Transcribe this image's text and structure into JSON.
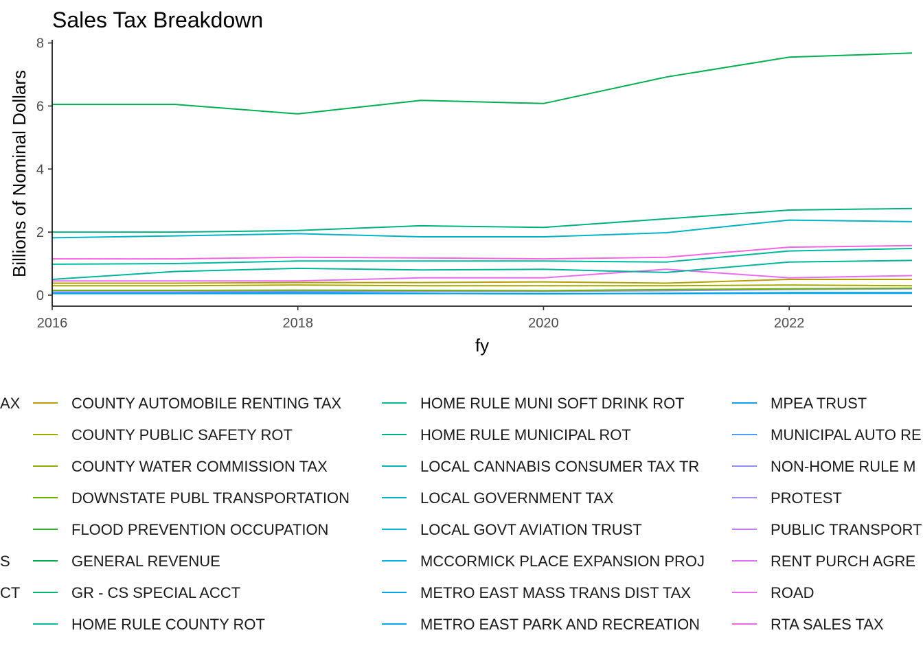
{
  "chart_data": {
    "type": "line",
    "title": "Sales Tax Breakdown",
    "xlabel": "fy",
    "ylabel": "Billions of Nominal Dollars",
    "xlim": [
      2016,
      2023
    ],
    "ylim": [
      -0.35,
      8.1
    ],
    "x_ticks": [
      "2016",
      "2018",
      "2020",
      "2022"
    ],
    "y_ticks": [
      "0",
      "2",
      "4",
      "6",
      "8"
    ],
    "x": [
      2016,
      2017,
      2018,
      2019,
      2020,
      2021,
      2022,
      2023
    ],
    "legend_position": "bottom",
    "series": [
      {
        "name": "GENERAL REVENUE",
        "color": "#00b050",
        "values": [
          6.05,
          6.05,
          5.75,
          6.18,
          6.08,
          6.92,
          7.55,
          7.68
        ]
      },
      {
        "name": "HOME RULE MUNICIPAL ROT",
        "color": "#00b080",
        "values": [
          2.0,
          2.0,
          2.05,
          2.2,
          2.15,
          2.42,
          2.7,
          2.75
        ]
      },
      {
        "name": "LOCAL GOVERNMENT TAX",
        "color": "#00b4c4",
        "values": [
          1.82,
          1.88,
          1.95,
          1.85,
          1.85,
          1.98,
          2.38,
          2.33
        ]
      },
      {
        "name": "RTA SALES TAX",
        "color": "#f465e3",
        "values": [
          1.15,
          1.15,
          1.2,
          1.18,
          1.15,
          1.2,
          1.52,
          1.57
        ]
      },
      {
        "name": "HOME RULE COUNTY ROT",
        "color": "#00b9a0",
        "values": [
          0.98,
          1.0,
          1.08,
          1.08,
          1.08,
          1.05,
          1.4,
          1.48
        ]
      },
      {
        "name": "HOME RULE MUNI SOFT DRINK ROT",
        "color": "#00b59a",
        "values": [
          0.5,
          0.75,
          0.85,
          0.8,
          0.82,
          0.72,
          1.05,
          1.1
        ]
      },
      {
        "name": "ROAD",
        "color": "#ea6bf0",
        "values": [
          0.45,
          0.45,
          0.45,
          0.55,
          0.55,
          0.82,
          0.55,
          0.62
        ]
      },
      {
        "name": "COUNTY AUTOMOBILE RENTING TAX",
        "color": "#b5a000",
        "values": [
          0.38,
          0.38,
          0.4,
          0.4,
          0.42,
          0.38,
          0.5,
          0.5
        ]
      },
      {
        "name": "COUNTY PUBLIC SAFETY ROT",
        "color": "#a3a500",
        "values": [
          0.3,
          0.3,
          0.32,
          0.3,
          0.3,
          0.3,
          0.32,
          0.3
        ]
      },
      {
        "name": "DOWNSTATE PUBL TRANSPORTATION",
        "color": "#6bb100",
        "values": [
          0.15,
          0.15,
          0.16,
          0.15,
          0.14,
          0.18,
          0.2,
          0.22
        ]
      },
      {
        "name": "NON-HOME RULE MUNI",
        "color": "#8f90ff",
        "values": [
          0.1,
          0.1,
          0.12,
          0.12,
          0.12,
          0.14,
          0.18,
          0.2
        ]
      },
      {
        "name": "METRO EAST MASS TRANS DIST TAX",
        "color": "#00a6e6",
        "values": [
          0.05,
          0.05,
          0.05,
          0.05,
          0.05,
          0.05,
          0.06,
          0.06
        ]
      },
      {
        "name": "MPEA TRUST",
        "color": "#129ef7",
        "values": [
          0.08,
          0.08,
          0.08,
          0.06,
          0.04,
          0.06,
          0.08,
          0.08
        ]
      }
    ]
  },
  "legend": {
    "col0": [
      "AX",
      "",
      "",
      "",
      "",
      "S",
      "CT"
    ],
    "col1": [
      {
        "label": "COUNTY AUTOMOBILE RENTING TAX",
        "color": "#b5a000"
      },
      {
        "label": "COUNTY PUBLIC SAFETY ROT",
        "color": "#a3a500"
      },
      {
        "label": "COUNTY WATER COMMISSION TAX",
        "color": "#8dab00"
      },
      {
        "label": "DOWNSTATE PUBL TRANSPORTATION",
        "color": "#6bb100"
      },
      {
        "label": "FLOOD PREVENTION OCCUPATION",
        "color": "#2eb52e"
      },
      {
        "label": "GENERAL REVENUE",
        "color": "#00b050"
      },
      {
        "label": "GR - CS SPECIAL ACCT",
        "color": "#00b866"
      },
      {
        "label": "HOME RULE COUNTY ROT",
        "color": "#00b9a0"
      }
    ],
    "col2": [
      {
        "label": "HOME RULE MUNI SOFT DRINK ROT",
        "color": "#00b59a"
      },
      {
        "label": "HOME RULE MUNICIPAL ROT",
        "color": "#00b080"
      },
      {
        "label": "LOCAL CANNABIS CONSUMER TAX TR",
        "color": "#00b6b6"
      },
      {
        "label": "LOCAL GOVERNMENT TAX",
        "color": "#00b4c4"
      },
      {
        "label": "LOCAL GOVT AVIATION TRUST",
        "color": "#00b8d4"
      },
      {
        "label": "MCCORMICK PLACE EXPANSION PROJ",
        "color": "#00b4e6"
      },
      {
        "label": "METRO EAST MASS TRANS DIST TAX",
        "color": "#00a6e6"
      },
      {
        "label": "METRO EAST PARK AND RECREATION",
        "color": "#00a4f0"
      }
    ],
    "col3": [
      {
        "label": "MPEA TRUST",
        "color": "#129ef7"
      },
      {
        "label": "MUNICIPAL AUTO RE",
        "color": "#4d9bff"
      },
      {
        "label": "NON-HOME RULE M",
        "color": "#8f90ff"
      },
      {
        "label": "PROTEST",
        "color": "#a48bff"
      },
      {
        "label": "PUBLIC TRANSPORT",
        "color": "#c77cff"
      },
      {
        "label": "RENT PURCH AGRE",
        "color": "#df70f8"
      },
      {
        "label": "ROAD",
        "color": "#ea6bf0"
      },
      {
        "label": "RTA SALES TAX",
        "color": "#f465e3"
      }
    ]
  }
}
